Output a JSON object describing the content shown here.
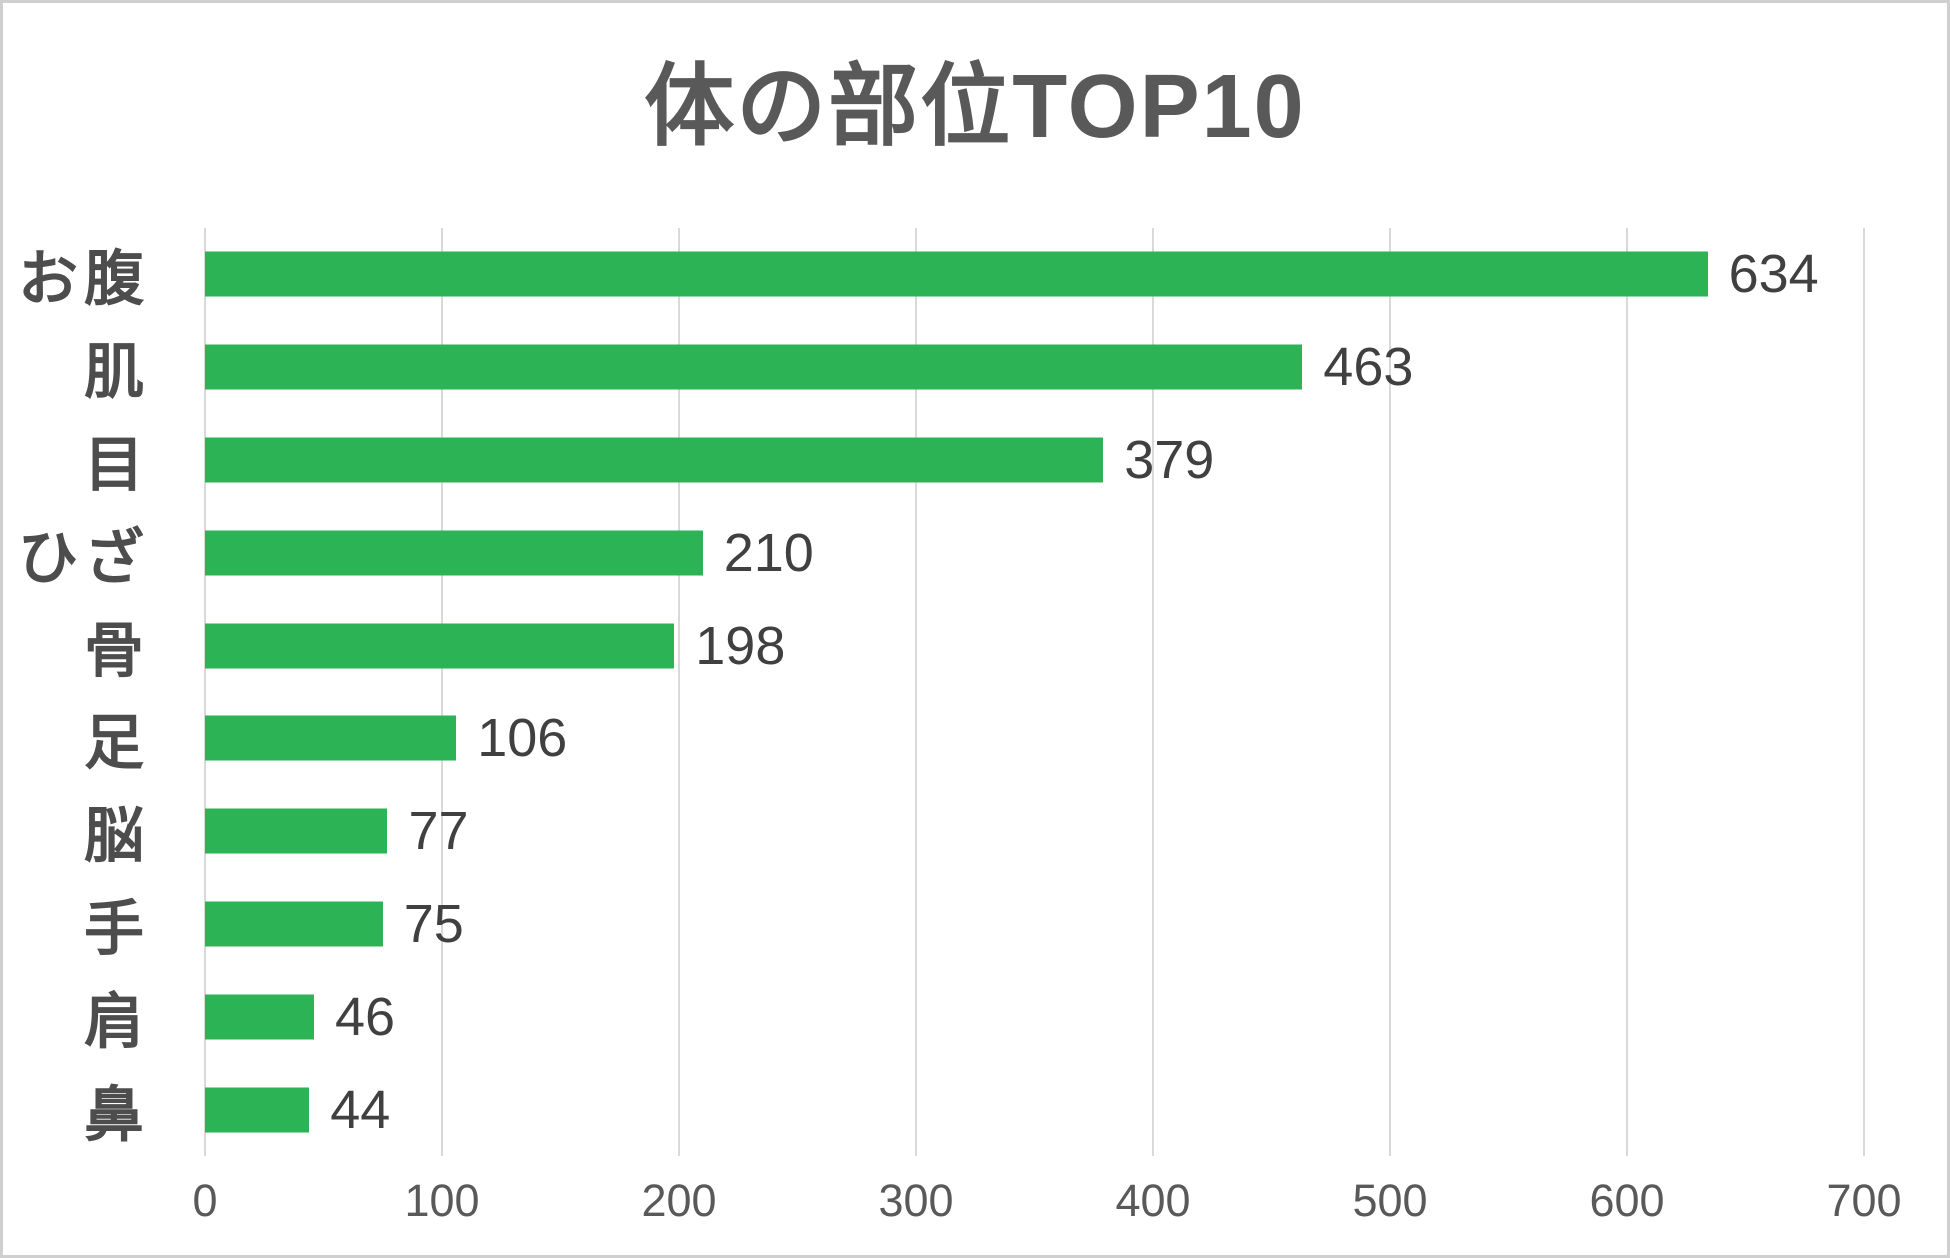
{
  "chart_data": {
    "type": "bar",
    "orientation": "horizontal",
    "title": "体の部位TOP10",
    "categories": [
      "お腹",
      "肌",
      "目",
      "ひざ",
      "骨",
      "足",
      "脳",
      "手",
      "肩",
      "鼻"
    ],
    "values": [
      634,
      463,
      379,
      210,
      198,
      106,
      77,
      75,
      46,
      44
    ],
    "xlabel": "",
    "ylabel": "",
    "xlim": [
      0,
      700
    ],
    "x_ticks": [
      0,
      100,
      200,
      300,
      400,
      500,
      600,
      700
    ],
    "gridlines": "vertical",
    "legend": "none",
    "data_labels": "outside-end",
    "colors": {
      "bar": "#2bb356",
      "gridline": "#d9d9d9",
      "title_text": "#595959",
      "category_text": "#4d4d4d",
      "value_text": "#404040",
      "tick_text": "#595959",
      "background": "#ffffff",
      "border": "#cfcfcf"
    }
  }
}
